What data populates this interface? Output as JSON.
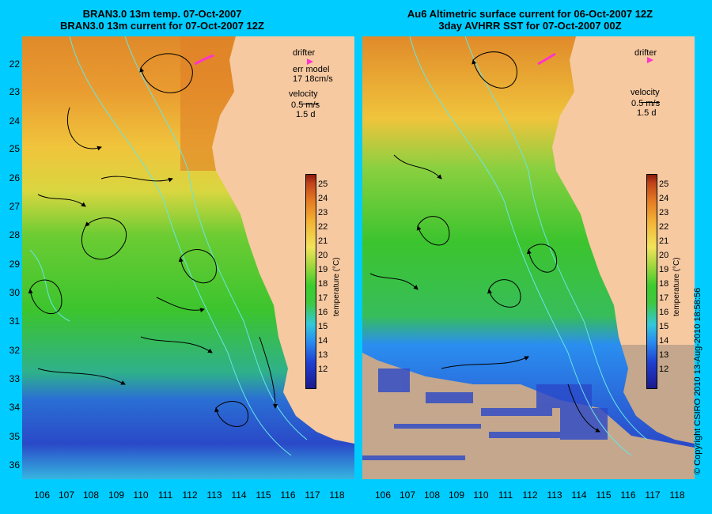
{
  "left": {
    "title1": "BRAN3.0 13m temp. 07-Oct-2007",
    "title2": "BRAN3.0 13m current for 07-Oct-2007 12Z",
    "legend": {
      "drifter": "drifter",
      "err1": "err model",
      "err2": "17 18cm/s",
      "velocity": "velocity",
      "scale": "0.5 m/s",
      "days": "1.5 d"
    }
  },
  "right": {
    "title1": "Au6 Altimetric surface current for 06-Oct-2007 12Z",
    "title2": "3day AVHRR SST for 07-Oct-2007 00Z",
    "legend": {
      "drifter": "drifter",
      "velocity": "velocity",
      "scale": "0.5 m/s",
      "days": "1.5 d"
    }
  },
  "y_ticks": [
    "22",
    "23",
    "24",
    "25",
    "26",
    "27",
    "28",
    "29",
    "30",
    "31",
    "32",
    "33",
    "34",
    "35",
    "36"
  ],
  "x_ticks": [
    "106",
    "107",
    "108",
    "109",
    "110",
    "111",
    "112",
    "113",
    "114",
    "115",
    "116",
    "117",
    "118"
  ],
  "colorbar": {
    "label": "temperature (°C)",
    "ticks": [
      "25",
      "24",
      "23",
      "22",
      "21",
      "20",
      "19",
      "18",
      "17",
      "16",
      "15",
      "14",
      "13",
      "12"
    ]
  },
  "copyright": "© Copyright CSIRO 2010   13-Aug-2010 18:58:56",
  "colors": {
    "background": "#00ccff",
    "land": "#f6c9a1",
    "isobath": "#66e6e6",
    "drifter": "#ff33cc"
  }
}
